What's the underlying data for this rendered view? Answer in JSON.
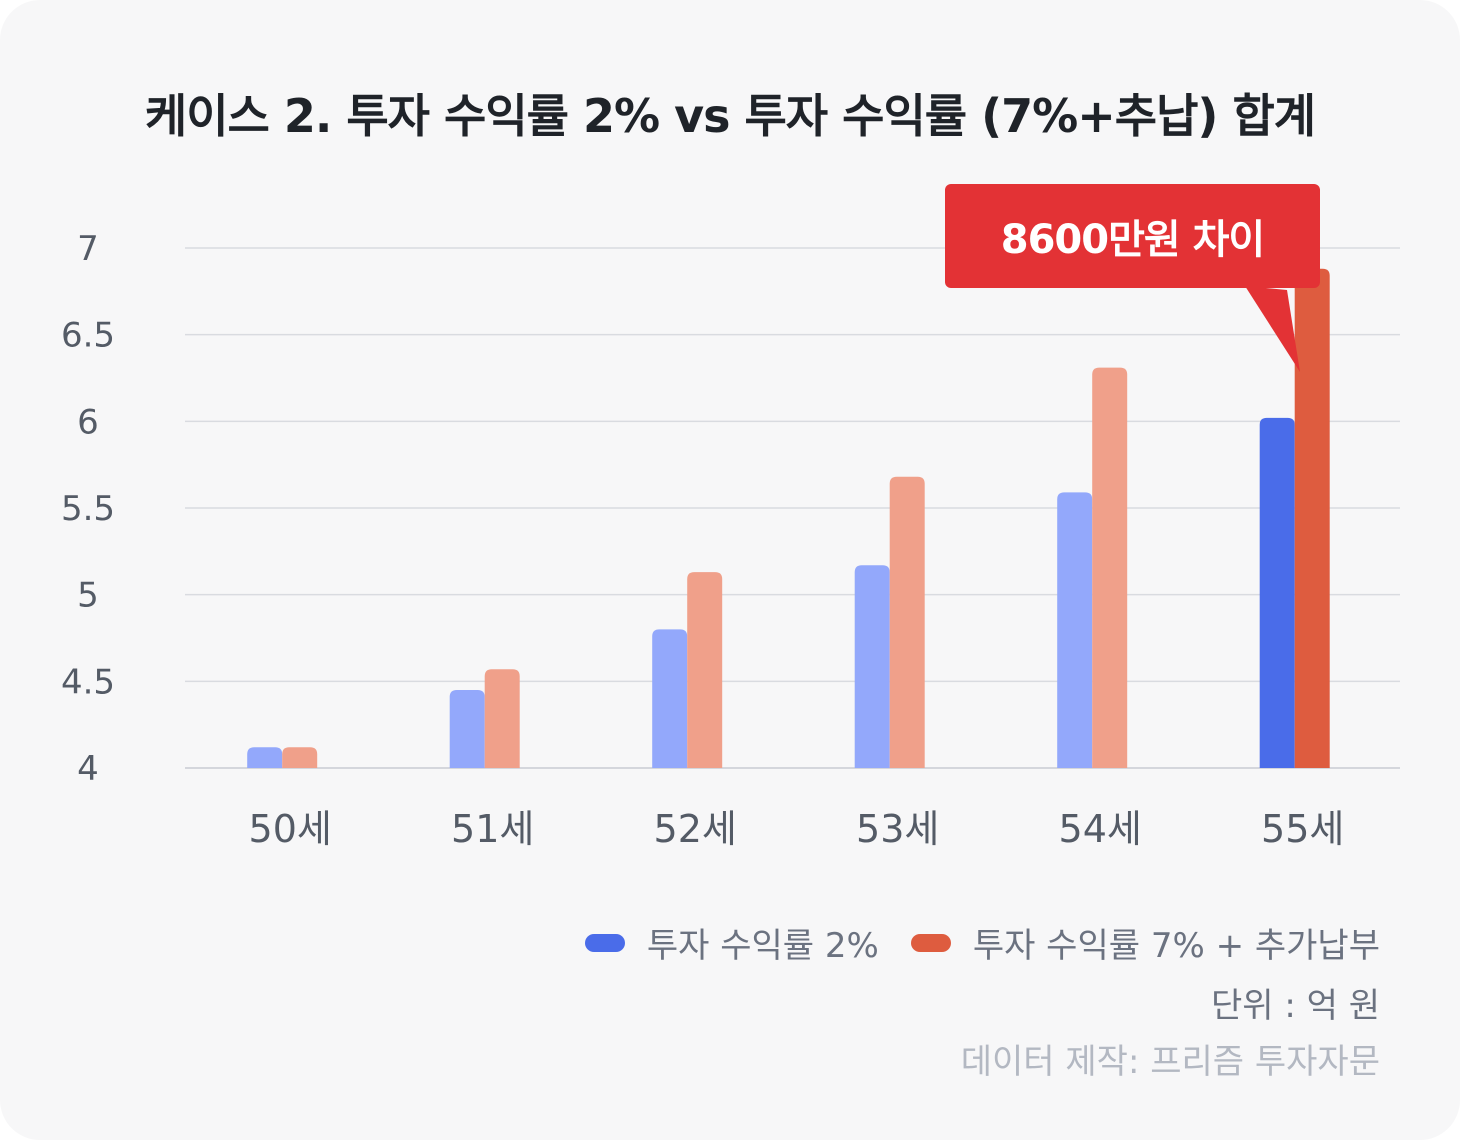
{
  "title": "케이스 2. 투자 수익률 2% vs 투자 수익률 (7%+추납) 합계",
  "annotation": "8600만원 차이",
  "unit_label": "단위 : 억 원",
  "source": "데이터 제작: 프리즘 투자자문",
  "colors": {
    "series1_faded": "#93a8fb",
    "series2_faded": "#f0a08a",
    "series1_highlight": "#4a6ce9",
    "series2_highlight": "#de5c3f",
    "callout": "#e33235",
    "grid": "#d9dbe0",
    "axis_text": "#545b66"
  },
  "chart_data": {
    "type": "bar",
    "categories": [
      "50세",
      "51세",
      "52세",
      "53세",
      "54세",
      "55세"
    ],
    "series": [
      {
        "name": "투자 수익률 2%",
        "values": [
          4.12,
          4.45,
          4.8,
          5.17,
          5.59,
          6.02
        ]
      },
      {
        "name": "투자 수익률 7% + 추가납부",
        "values": [
          4.12,
          4.57,
          5.13,
          5.68,
          6.31,
          6.88
        ]
      }
    ],
    "y_ticks": [
      "4",
      "4.5",
      "5",
      "5.5",
      "6",
      "6.5",
      "7"
    ],
    "ylim": [
      4,
      7
    ],
    "highlight_category": "55세",
    "grid": true,
    "legend_position": "bottom-right"
  }
}
